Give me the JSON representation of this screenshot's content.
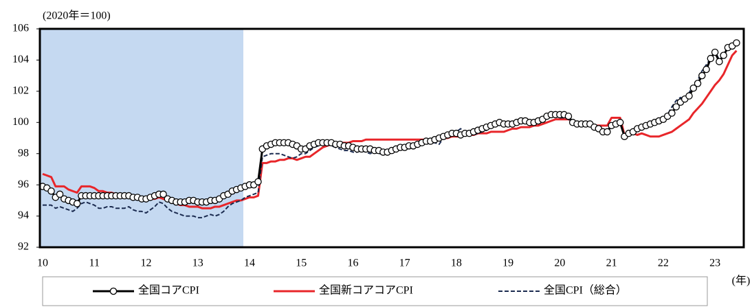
{
  "chart_data": {
    "type": "line",
    "y_unit_label": "(2020年＝100)",
    "x_unit_label": "(年)",
    "categories": [
      "10",
      null,
      null,
      null,
      null,
      null,
      null,
      null,
      null,
      null,
      null,
      null,
      "11",
      null,
      null,
      null,
      null,
      null,
      null,
      null,
      null,
      null,
      null,
      null,
      "12",
      null,
      null,
      null,
      null,
      null,
      null,
      null,
      null,
      null,
      null,
      null,
      "13",
      null,
      null,
      null,
      null,
      null,
      null,
      null,
      null,
      null,
      null,
      null,
      "14",
      null,
      null,
      null,
      null,
      null,
      null,
      null,
      null,
      null,
      null,
      null,
      "15",
      null,
      null,
      null,
      null,
      null,
      null,
      null,
      null,
      null,
      null,
      null,
      "16",
      null,
      null,
      null,
      null,
      null,
      null,
      null,
      null,
      null,
      null,
      null,
      "17",
      null,
      null,
      null,
      null,
      null,
      null,
      null,
      null,
      null,
      null,
      null,
      "18",
      null,
      null,
      null,
      null,
      null,
      null,
      null,
      null,
      null,
      null,
      null,
      "19",
      null,
      null,
      null,
      null,
      null,
      null,
      null,
      null,
      null,
      null,
      null,
      "20",
      null,
      null,
      null,
      null,
      null,
      null,
      null,
      null,
      null,
      null,
      null,
      "21",
      null,
      null,
      null,
      null,
      null,
      null,
      null,
      null,
      null,
      null,
      null,
      "22",
      null,
      null,
      null,
      null,
      null,
      null,
      null,
      null,
      null,
      null,
      null,
      "23",
      null,
      null,
      null,
      null,
      null
    ],
    "ylim": [
      92,
      106
    ],
    "yticks": [
      92,
      94,
      96,
      98,
      100,
      102,
      104,
      106
    ],
    "series": [
      {
        "name": "全国コアCPI",
        "color": "#000000",
        "marker": "circle",
        "dash": "solid",
        "values": [
          95.9,
          95.8,
          95.6,
          95.2,
          95.4,
          95.1,
          95.0,
          94.9,
          94.8,
          95.3,
          95.3,
          95.3,
          95.3,
          95.3,
          95.3,
          95.3,
          95.3,
          95.3,
          95.3,
          95.3,
          95.3,
          95.2,
          95.2,
          95.1,
          95.1,
          95.2,
          95.3,
          95.4,
          95.4,
          95.1,
          95.0,
          94.9,
          94.9,
          94.9,
          95.0,
          95.0,
          94.9,
          94.9,
          94.9,
          95.0,
          95.0,
          95.1,
          95.3,
          95.4,
          95.6,
          95.7,
          95.8,
          95.9,
          96.0,
          96.0,
          96.2,
          98.3,
          98.5,
          98.6,
          98.7,
          98.7,
          98.7,
          98.7,
          98.6,
          98.5,
          98.3,
          98.3,
          98.5,
          98.6,
          98.7,
          98.7,
          98.7,
          98.7,
          98.6,
          98.6,
          98.5,
          98.5,
          98.4,
          98.3,
          98.3,
          98.3,
          98.3,
          98.2,
          98.2,
          98.1,
          98.1,
          98.2,
          98.3,
          98.4,
          98.4,
          98.5,
          98.5,
          98.6,
          98.7,
          98.8,
          98.8,
          98.9,
          99.0,
          99.1,
          99.2,
          99.3,
          99.3,
          99.2,
          99.3,
          99.3,
          99.4,
          99.5,
          99.6,
          99.7,
          99.8,
          99.9,
          100.0,
          99.9,
          99.9,
          99.9,
          100.0,
          100.1,
          100.1,
          100.0,
          100.0,
          100.1,
          100.2,
          100.4,
          100.5,
          100.5,
          100.5,
          100.5,
          100.4,
          100.0,
          99.9,
          99.9,
          99.9,
          99.9,
          99.7,
          99.6,
          99.4,
          99.4,
          99.8,
          99.9,
          100.0,
          99.1,
          99.3,
          99.4,
          99.6,
          99.7,
          99.8,
          99.9,
          100.0,
          100.1,
          100.2,
          100.4,
          100.6,
          101.0,
          101.3,
          101.5,
          101.7,
          102.2,
          102.5,
          103.0,
          103.4,
          104.1,
          104.5,
          103.9,
          104.3,
          104.8,
          104.9,
          105.1
        ]
      },
      {
        "name": "全国新コアコアCPI",
        "color": "#e8262a",
        "marker": "none",
        "dash": "solid",
        "values": [
          96.7,
          96.6,
          96.5,
          95.9,
          95.9,
          95.9,
          95.7,
          95.6,
          95.5,
          95.9,
          95.9,
          95.9,
          95.8,
          95.6,
          95.6,
          95.5,
          95.5,
          95.4,
          95.4,
          95.4,
          95.4,
          95.3,
          95.2,
          95.1,
          95.0,
          95.1,
          95.1,
          95.2,
          95.1,
          95.0,
          94.9,
          94.8,
          94.7,
          94.7,
          94.6,
          94.6,
          94.6,
          94.5,
          94.5,
          94.5,
          94.6,
          94.6,
          94.7,
          94.8,
          94.9,
          95.0,
          95.0,
          95.1,
          95.2,
          95.2,
          95.3,
          97.4,
          97.4,
          97.5,
          97.5,
          97.6,
          97.6,
          97.7,
          97.7,
          97.6,
          97.7,
          97.8,
          97.8,
          98.0,
          98.2,
          98.4,
          98.5,
          98.6,
          98.7,
          98.7,
          98.7,
          98.7,
          98.8,
          98.8,
          98.8,
          98.9,
          98.9,
          98.9,
          98.9,
          98.9,
          98.9,
          98.9,
          98.9,
          98.9,
          98.9,
          98.9,
          98.9,
          98.9,
          98.9,
          98.9,
          98.9,
          98.9,
          99.0,
          99.0,
          99.0,
          99.1,
          99.1,
          99.1,
          99.2,
          99.2,
          99.2,
          99.3,
          99.3,
          99.3,
          99.4,
          99.4,
          99.4,
          99.4,
          99.5,
          99.6,
          99.6,
          99.7,
          99.7,
          99.7,
          99.8,
          99.8,
          99.9,
          100.0,
          100.1,
          100.2,
          100.2,
          100.2,
          100.2,
          100.1,
          100.0,
          100.0,
          100.0,
          99.9,
          99.8,
          99.8,
          99.8,
          99.8,
          100.3,
          100.3,
          100.3,
          99.2,
          99.2,
          99.3,
          99.2,
          99.3,
          99.2,
          99.1,
          99.1,
          99.1,
          99.2,
          99.3,
          99.4,
          99.6,
          99.8,
          100.0,
          100.2,
          100.6,
          100.9,
          101.2,
          101.6,
          102.0,
          102.4,
          102.7,
          103.1,
          103.7,
          104.3,
          104.6
        ]
      },
      {
        "name": "全国CPI（総合）",
        "color": "#1a2a4f",
        "marker": "none",
        "dash": "dashed",
        "values": [
          94.7,
          94.7,
          94.7,
          94.5,
          94.6,
          94.5,
          94.4,
          94.3,
          94.5,
          94.8,
          94.9,
          94.8,
          94.7,
          94.5,
          94.5,
          94.6,
          94.6,
          94.5,
          94.5,
          94.5,
          94.6,
          94.4,
          94.3,
          94.3,
          94.2,
          94.4,
          94.6,
          94.9,
          94.8,
          94.5,
          94.3,
          94.2,
          94.1,
          94.0,
          94.0,
          94.0,
          93.9,
          93.9,
          94.0,
          94.1,
          94.0,
          94.1,
          94.3,
          94.6,
          94.8,
          94.9,
          95.0,
          95.2,
          95.3,
          95.4,
          95.5,
          97.8,
          97.9,
          98.0,
          98.0,
          98.0,
          97.9,
          97.8,
          97.7,
          97.8,
          98.0,
          98.0,
          98.2,
          98.4,
          98.5,
          98.6,
          98.6,
          98.5,
          98.4,
          98.3,
          98.2,
          98.2,
          98.1,
          98.1,
          98.2,
          98.1,
          98.0,
          98.1,
          98.0,
          98.0,
          98.1,
          98.3,
          98.3,
          98.3,
          98.4,
          98.4,
          98.4,
          98.5,
          98.6,
          98.6,
          98.7,
          98.7,
          98.6,
          99.0,
          99.1,
          99.2,
          99.4,
          99.6,
          99.3,
          99.2,
          99.2,
          99.3,
          99.4,
          99.5,
          99.7,
          99.9,
          99.8,
          99.8,
          99.8,
          99.9,
          99.9,
          100.0,
          100.1,
          100.0,
          100.0,
          100.0,
          100.0,
          100.3,
          100.4,
          100.4,
          100.3,
          100.3,
          100.2,
          100.0,
          99.8,
          99.8,
          100.0,
          100.0,
          99.7,
          99.5,
          99.3,
          99.5,
          99.8,
          99.9,
          100.0,
          99.2,
          99.3,
          99.5,
          99.6,
          99.7,
          99.9,
          99.9,
          100.0,
          100.1,
          100.1,
          100.5,
          101.0,
          101.4,
          101.6,
          101.5,
          101.9,
          102.4,
          102.7,
          103.3,
          103.7,
          104.1,
          104.6,
          104.0,
          104.3,
          104.8,
          104.9,
          105.0
        ]
      }
    ]
  }
}
